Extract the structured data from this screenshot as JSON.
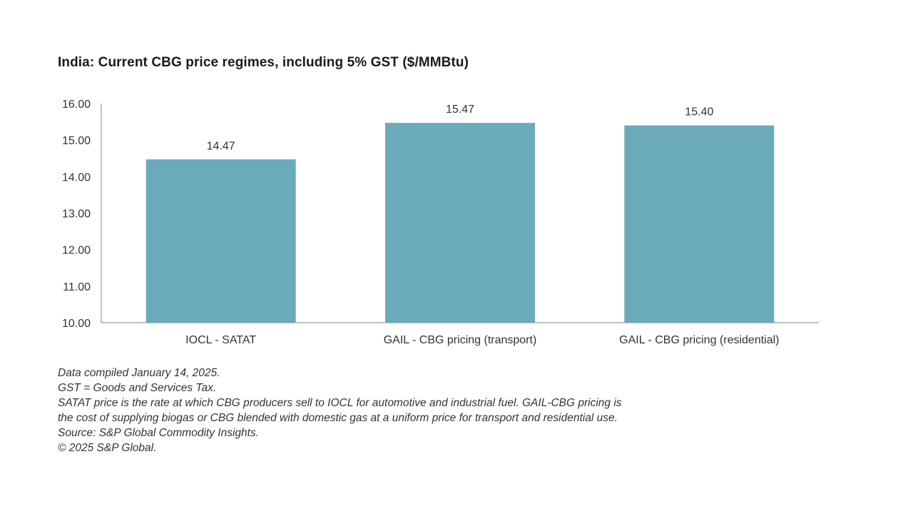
{
  "title": "India: Current CBG price regimes, including 5% GST ($/MMBtu)",
  "chart_data": {
    "type": "bar",
    "title": "India: Current CBG price regimes, including 5% GST ($/MMBtu)",
    "categories": [
      "IOCL - SATAT",
      "GAIL - CBG pricing (transport)",
      "GAIL - CBG pricing (residential)"
    ],
    "values": [
      14.47,
      15.47,
      15.4
    ],
    "data_labels": [
      "14.47",
      "15.47",
      "15.40"
    ],
    "ylim": [
      10,
      16
    ],
    "yticks": [
      "10.00",
      "11.00",
      "12.00",
      "13.00",
      "14.00",
      "15.00",
      "16.00"
    ],
    "xlabel": "",
    "ylabel": "",
    "grid": false,
    "bar_color": "#6aaabb"
  },
  "notes": {
    "lines": [
      "Data compiled January 14, 2025.",
      "GST = Goods and Services Tax.",
      "SATAT price is the rate at which CBG producers sell to IOCL for automotive and industrial fuel. GAIL-CBG pricing is",
      "the cost of supplying biogas or CBG blended with domestic gas at a uniform price for transport and residential use.",
      "Source: S&P Global Commodity Insights.",
      "© 2025 S&P Global."
    ]
  }
}
